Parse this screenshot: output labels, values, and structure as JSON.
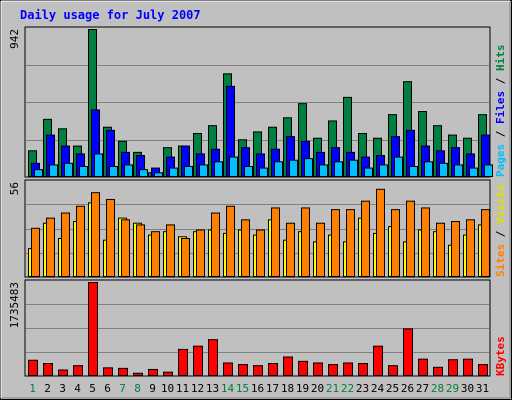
{
  "chart_data": {
    "type": "bar",
    "title": "Daily usage for July 2007",
    "categories": [
      "1",
      "2",
      "3",
      "4",
      "5",
      "6",
      "7",
      "8",
      "9",
      "10",
      "11",
      "12",
      "13",
      "14",
      "15",
      "16",
      "17",
      "18",
      "19",
      "20",
      "21",
      "22",
      "23",
      "24",
      "25",
      "26",
      "27",
      "28",
      "29",
      "30",
      "31"
    ],
    "weekend_days": [
      "1",
      "7",
      "8",
      "14",
      "15",
      "21",
      "22",
      "28",
      "29"
    ],
    "panels": [
      {
        "id": "hits",
        "max_label": "942",
        "ylim": [
          0,
          942
        ],
        "grid": true,
        "series": [
          {
            "name": "Hits",
            "color": "#008040",
            "values": [
              170,
              370,
              310,
              200,
              942,
              320,
              230,
              160,
              30,
              190,
              200,
              280,
              330,
              660,
              240,
              290,
              320,
              380,
              470,
              250,
              360,
              510,
              280,
              250,
              400,
              610,
              420,
              330,
              270,
              250,
              400
            ]
          },
          {
            "name": "Files",
            "color": "#0000ff",
            "values": [
              90,
              270,
              200,
              150,
              430,
              300,
              160,
              140,
              60,
              130,
              200,
              150,
              180,
              580,
              190,
              150,
              180,
              260,
              230,
              160,
              190,
              160,
              130,
              140,
              260,
              300,
              200,
              170,
              190,
              150,
              270
            ]
          },
          {
            "name": "Pages",
            "color": "#00c0ff",
            "values": [
              50,
              80,
              90,
              70,
              150,
              70,
              80,
              50,
              30,
              60,
              70,
              80,
              100,
              130,
              70,
              60,
              100,
              110,
              120,
              80,
              100,
              110,
              60,
              80,
              130,
              70,
              100,
              90,
              80,
              60,
              80
            ]
          }
        ],
        "side_labels": [
          {
            "text": "Pages",
            "color": "#00c0ff"
          },
          {
            "text": " / ",
            "color": "#000000"
          },
          {
            "text": "Files",
            "color": "#0000ff"
          },
          {
            "text": " / ",
            "color": "#000000"
          },
          {
            "text": "Hits",
            "color": "#008040"
          }
        ]
      },
      {
        "id": "visits",
        "max_label": "56",
        "ylim": [
          0,
          56
        ],
        "grid": true,
        "series": [
          {
            "name": "Visits",
            "color": "#ffff00",
            "values": [
              17,
              32,
              23,
              33,
              44,
              22,
              35,
              32,
              25,
              27,
              24,
              27,
              28,
              26,
              28,
              25,
              34,
              22,
              27,
              21,
              25,
              21,
              35,
              26,
              30,
              21,
              28,
              27,
              19,
              25,
              31
            ]
          },
          {
            "name": "Sites",
            "color": "#ff8000",
            "values": [
              29,
              35,
              38,
              42,
              50,
              46,
              34,
              31,
              27,
              31,
              23,
              28,
              38,
              42,
              34,
              28,
              41,
              32,
              41,
              32,
              40,
              40,
              45,
              52,
              40,
              45,
              41,
              32,
              33,
              34,
              40
            ]
          }
        ],
        "side_labels": [
          {
            "text": "Sites",
            "color": "#ff8000"
          },
          {
            "text": " / ",
            "color": "#000000"
          },
          {
            "text": "Visits",
            "color": "#e0e000"
          }
        ]
      },
      {
        "id": "kbytes",
        "max_label": "1735483",
        "ylim": [
          0,
          1735483
        ],
        "grid": true,
        "series": [
          {
            "name": "KBytes",
            "color": "#ff0000",
            "values": [
              300000,
              240000,
              120000,
              200000,
              1735483,
              160000,
              150000,
              60000,
              130000,
              80000,
              500000,
              560000,
              680000,
              250000,
              220000,
              200000,
              240000,
              360000,
              280000,
              250000,
              220000,
              250000,
              240000,
              560000,
              200000,
              880000,
              320000,
              170000,
              310000,
              320000,
              220000
            ]
          }
        ],
        "side_labels": [
          {
            "text": "KBytes",
            "color": "#ff0000"
          }
        ]
      }
    ],
    "colors": {
      "weekday_label": "#008040",
      "weekend_label": "#00a0a0",
      "background": "#c0c0c0",
      "title": "#0000ff"
    }
  }
}
